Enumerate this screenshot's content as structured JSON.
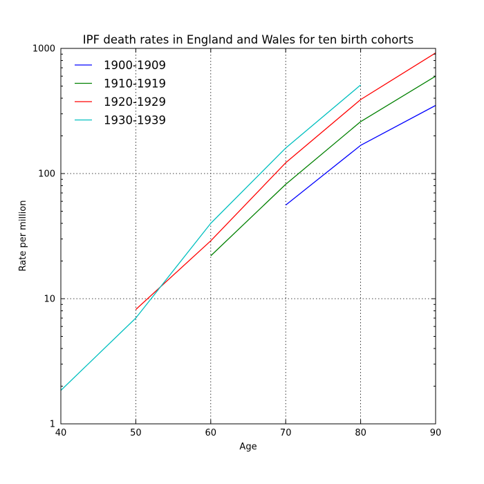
{
  "chart_data": {
    "type": "line",
    "title": "IPF death rates in England and Wales for ten birth cohorts",
    "xlabel": "Age",
    "ylabel": "Rate per million",
    "xlim": [
      40,
      90
    ],
    "ylim": [
      1,
      1000
    ],
    "yscale": "log",
    "grid": true,
    "legend_position": "top-left",
    "x_ticks": [
      40,
      50,
      60,
      70,
      80,
      90
    ],
    "x_tick_labels": [
      "40",
      "50",
      "60",
      "70",
      "80",
      "90"
    ],
    "y_ticks": [
      1,
      10,
      100,
      1000
    ],
    "y_tick_labels": [
      "1",
      "10",
      "100",
      "1000"
    ],
    "series": [
      {
        "name": "1900-1909",
        "color": "#0000ff",
        "x": [
          70,
          80,
          90
        ],
        "y": [
          56,
          168,
          350
        ]
      },
      {
        "name": "1910-1919",
        "color": "#008000",
        "x": [
          60,
          70,
          80,
          90
        ],
        "y": [
          22,
          82,
          260,
          600
        ]
      },
      {
        "name": "1920-1929",
        "color": "#ff0000",
        "x": [
          50,
          60,
          70,
          80,
          90
        ],
        "y": [
          8.2,
          29,
          122,
          390,
          920
        ]
      },
      {
        "name": "1930-1939",
        "color": "#00bfbf",
        "x": [
          40,
          50,
          60,
          70,
          80
        ],
        "y": [
          1.85,
          7,
          40,
          160,
          510
        ]
      }
    ]
  }
}
